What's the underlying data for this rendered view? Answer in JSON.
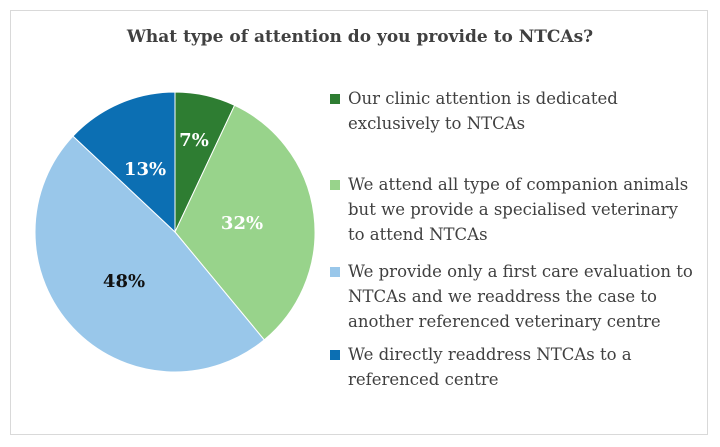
{
  "chart_data": {
    "type": "pie",
    "title": "What type of attention do you provide to NTCAs?",
    "slices": [
      {
        "label": "Our clinic attention is dedicated exclusively to NTCAs",
        "value": 7,
        "display": "7%",
        "color": "#2e7d32",
        "label_color": "#ffffff"
      },
      {
        "label": "We attend all type of companion animals but we provide a specialised veterinary to attend NTCAs",
        "value": 32,
        "display": "32%",
        "color": "#98d38b",
        "label_color": "#ffffff"
      },
      {
        "label": "We provide only a first care evaluation to NTCAs and we readdress the case to another referenced veterinary centre",
        "value": 48,
        "display": "48%",
        "color": "#99c7ea",
        "label_color": "#111111"
      },
      {
        "label": "We directly readdress NTCAs to a referenced centre",
        "value": 13,
        "display": "13%",
        "color": "#0c6fb3",
        "label_color": "#ffffff"
      }
    ],
    "legend_position": "right",
    "start_angle_deg": 0,
    "direction": "clockwise"
  },
  "legend_lines": [
    [
      "Our clinic attention is dedicated",
      "exclusively to NTCAs"
    ],
    [
      "We attend all type of companion animals",
      "but we provide a specialised veterinary",
      "to attend NTCAs"
    ],
    [
      "We provide only a first care evaluation to",
      "NTCAs and we readdress the case to",
      "another referenced veterinary centre"
    ],
    [
      "We directly readdress NTCAs to a",
      "referenced centre"
    ]
  ]
}
